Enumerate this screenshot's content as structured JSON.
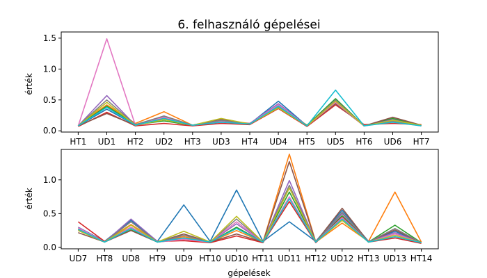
{
  "chart_data": [
    {
      "type": "line",
      "title": "6. felhasználó gépelései",
      "ylabel": "érték",
      "xlabel": "",
      "categories": [
        "HT1",
        "UD1",
        "HT2",
        "UD2",
        "HT3",
        "UD3",
        "HT4",
        "UD4",
        "HT5",
        "UD5",
        "HT6",
        "UD6",
        "HT7"
      ],
      "ylim": [
        -0.02,
        1.6
      ],
      "yticks": [
        0.0,
        0.5,
        1.0,
        1.5
      ],
      "ytick_labels": [
        "0.0",
        "0.5",
        "1.0",
        "1.5"
      ],
      "grid": false,
      "series": [
        {
          "color": "#1f77b4",
          "values": [
            0.08,
            0.35,
            0.09,
            0.22,
            0.09,
            0.16,
            0.11,
            0.48,
            0.08,
            0.5,
            0.08,
            0.18,
            0.09
          ]
        },
        {
          "color": "#ff7f0e",
          "values": [
            0.09,
            0.42,
            0.12,
            0.31,
            0.09,
            0.17,
            0.12,
            0.4,
            0.09,
            0.46,
            0.09,
            0.16,
            0.08
          ]
        },
        {
          "color": "#2ca02c",
          "values": [
            0.08,
            0.4,
            0.1,
            0.16,
            0.09,
            0.15,
            0.11,
            0.38,
            0.09,
            0.52,
            0.08,
            0.2,
            0.08
          ]
        },
        {
          "color": "#d62728",
          "values": [
            0.07,
            0.3,
            0.08,
            0.12,
            0.08,
            0.12,
            0.1,
            0.36,
            0.07,
            0.42,
            0.1,
            0.12,
            0.1
          ]
        },
        {
          "color": "#9467bd",
          "values": [
            0.08,
            0.57,
            0.09,
            0.24,
            0.09,
            0.14,
            0.12,
            0.44,
            0.08,
            0.47,
            0.08,
            0.18,
            0.08
          ]
        },
        {
          "color": "#8c564b",
          "values": [
            0.08,
            0.28,
            0.09,
            0.2,
            0.09,
            0.19,
            0.11,
            0.41,
            0.08,
            0.44,
            0.08,
            0.22,
            0.09
          ]
        },
        {
          "color": "#e377c2",
          "values": [
            0.08,
            1.49,
            0.09,
            0.22,
            0.09,
            0.15,
            0.11,
            0.42,
            0.08,
            0.46,
            0.08,
            0.15,
            0.08
          ]
        },
        {
          "color": "#7f7f7f",
          "values": [
            0.08,
            0.5,
            0.1,
            0.24,
            0.09,
            0.17,
            0.11,
            0.39,
            0.08,
            0.5,
            0.08,
            0.16,
            0.08
          ]
        },
        {
          "color": "#bcbd22",
          "values": [
            0.08,
            0.46,
            0.09,
            0.18,
            0.09,
            0.2,
            0.11,
            0.37,
            0.08,
            0.48,
            0.08,
            0.17,
            0.09
          ]
        },
        {
          "color": "#17becf",
          "values": [
            0.08,
            0.38,
            0.09,
            0.2,
            0.09,
            0.14,
            0.11,
            0.4,
            0.08,
            0.66,
            0.08,
            0.14,
            0.08
          ]
        }
      ]
    },
    {
      "type": "line",
      "title": "",
      "ylabel": "érték",
      "xlabel": "gépelések",
      "categories": [
        "UD7",
        "HT8",
        "UD8",
        "HT9",
        "UD9",
        "HT10",
        "UD10",
        "HT11",
        "UD11",
        "HT12",
        "UD12",
        "HT13",
        "UD13",
        "HT14"
      ],
      "ylim": [
        -0.02,
        1.45
      ],
      "yticks": [
        0.0,
        0.5,
        1.0
      ],
      "ytick_labels": [
        "0.0",
        "0.5",
        "1.0"
      ],
      "grid": false,
      "series": [
        {
          "color": "#1f77b4",
          "values": [
            0.3,
            0.09,
            0.4,
            0.09,
            0.63,
            0.09,
            0.85,
            0.09,
            0.38,
            0.09,
            0.55,
            0.09,
            0.24,
            0.07
          ]
        },
        {
          "color": "#ff7f0e",
          "values": [
            0.28,
            0.09,
            0.34,
            0.09,
            0.16,
            0.08,
            0.25,
            0.08,
            1.38,
            0.08,
            0.36,
            0.09,
            0.82,
            0.08
          ]
        },
        {
          "color": "#2ca02c",
          "values": [
            0.27,
            0.08,
            0.26,
            0.08,
            0.12,
            0.08,
            0.3,
            0.08,
            0.82,
            0.08,
            0.47,
            0.08,
            0.33,
            0.07
          ]
        },
        {
          "color": "#d62728",
          "values": [
            0.38,
            0.09,
            0.3,
            0.09,
            0.1,
            0.07,
            0.17,
            0.07,
            0.68,
            0.07,
            0.45,
            0.08,
            0.14,
            0.06
          ]
        },
        {
          "color": "#9467bd",
          "values": [
            0.3,
            0.08,
            0.42,
            0.09,
            0.14,
            0.08,
            0.35,
            0.08,
            0.99,
            0.08,
            0.5,
            0.09,
            0.22,
            0.07
          ]
        },
        {
          "color": "#8c564b",
          "values": [
            0.22,
            0.08,
            0.25,
            0.08,
            0.2,
            0.08,
            0.2,
            0.08,
            1.27,
            0.08,
            0.58,
            0.08,
            0.26,
            0.07
          ]
        },
        {
          "color": "#e377c2",
          "values": [
            0.29,
            0.08,
            0.3,
            0.08,
            0.12,
            0.08,
            0.38,
            0.08,
            0.75,
            0.08,
            0.44,
            0.08,
            0.2,
            0.07
          ]
        },
        {
          "color": "#7f7f7f",
          "values": [
            0.26,
            0.08,
            0.38,
            0.08,
            0.18,
            0.08,
            0.42,
            0.08,
            0.92,
            0.08,
            0.52,
            0.08,
            0.28,
            0.07
          ]
        },
        {
          "color": "#bcbd22",
          "values": [
            0.25,
            0.08,
            0.33,
            0.08,
            0.24,
            0.08,
            0.46,
            0.08,
            0.88,
            0.08,
            0.4,
            0.08,
            0.18,
            0.07
          ]
        },
        {
          "color": "#17becf",
          "values": [
            0.27,
            0.08,
            0.28,
            0.08,
            0.14,
            0.08,
            0.28,
            0.08,
            0.72,
            0.08,
            0.42,
            0.08,
            0.16,
            0.07
          ]
        }
      ]
    }
  ]
}
